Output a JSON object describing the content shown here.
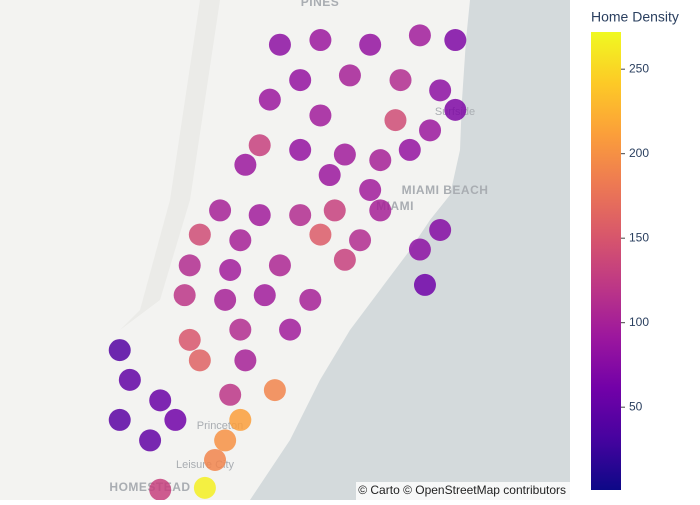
{
  "chart_data": {
    "type": "scatter_map",
    "colorbar_title": "Home Density",
    "attribution": "© Carto © OpenStreetMap contributors",
    "map_labels": [
      "PINES",
      "Surfside",
      "MIAMI BEACH",
      "MIAMI",
      "Princeton",
      "Leisure City",
      "HOMESTEAD"
    ],
    "lonlim": [
      -80.658,
      -79.982
    ],
    "latlim": [
      25.457,
      25.994
    ],
    "clim": [
      1,
      272
    ],
    "cticks": [
      50,
      100,
      150,
      200,
      250
    ],
    "colorscale": [
      "#0d0887",
      "#46039f",
      "#7201a8",
      "#9c179e",
      "#bd3786",
      "#d8576b",
      "#ed7953",
      "#fb9f3a",
      "#fdca26",
      "#f0f921"
    ],
    "lon": [
      -80.326,
      -80.278,
      -80.219,
      -80.16,
      -80.118,
      -80.302,
      -80.243,
      -80.183,
      -80.136,
      -80.338,
      -80.278,
      -80.189,
      -80.148,
      -80.118,
      -80.35,
      -80.302,
      -80.249,
      -80.207,
      -80.172,
      -80.367,
      -80.267,
      -80.219,
      -80.397,
      -80.35,
      -80.302,
      -80.261,
      -80.207,
      -80.421,
      -80.373,
      -80.278,
      -80.231,
      -80.433,
      -80.385,
      -80.326,
      -80.249,
      -80.439,
      -80.391,
      -80.344,
      -80.29,
      -80.433,
      -80.373,
      -80.314,
      -80.421,
      -80.367,
      -80.332,
      -80.385,
      -80.373,
      -80.391,
      -80.403,
      -80.415,
      -80.468,
      -80.504,
      -80.516,
      -80.468,
      -80.48,
      -80.45,
      -80.516,
      -80.16,
      -80.154,
      -80.136
    ],
    "lat": [
      25.946,
      25.951,
      25.946,
      25.956,
      25.951,
      25.908,
      25.913,
      25.908,
      25.897,
      25.887,
      25.87,
      25.865,
      25.854,
      25.876,
      25.838,
      25.833,
      25.828,
      25.822,
      25.833,
      25.817,
      25.806,
      25.79,
      25.768,
      25.763,
      25.763,
      25.768,
      25.768,
      25.742,
      25.736,
      25.742,
      25.736,
      25.709,
      25.704,
      25.709,
      25.715,
      25.677,
      25.672,
      25.677,
      25.672,
      25.629,
      25.64,
      25.64,
      25.607,
      25.607,
      25.575,
      25.57,
      25.543,
      25.521,
      25.5,
      25.47,
      25.468,
      25.586,
      25.543,
      25.564,
      25.521,
      25.543,
      25.618,
      25.726,
      25.688,
      25.747
    ],
    "values": [
      80,
      90,
      85,
      95,
      70,
      85,
      100,
      110,
      80,
      90,
      95,
      140,
      90,
      70,
      130,
      85,
      95,
      100,
      85,
      90,
      90,
      95,
      100,
      95,
      110,
      130,
      100,
      140,
      100,
      155,
      110,
      110,
      95,
      105,
      130,
      120,
      100,
      95,
      100,
      150,
      110,
      95,
      160,
      100,
      190,
      120,
      210,
      200,
      190,
      265,
      130,
      50,
      45,
      55,
      50,
      60,
      40,
      80,
      60,
      75
    ]
  }
}
